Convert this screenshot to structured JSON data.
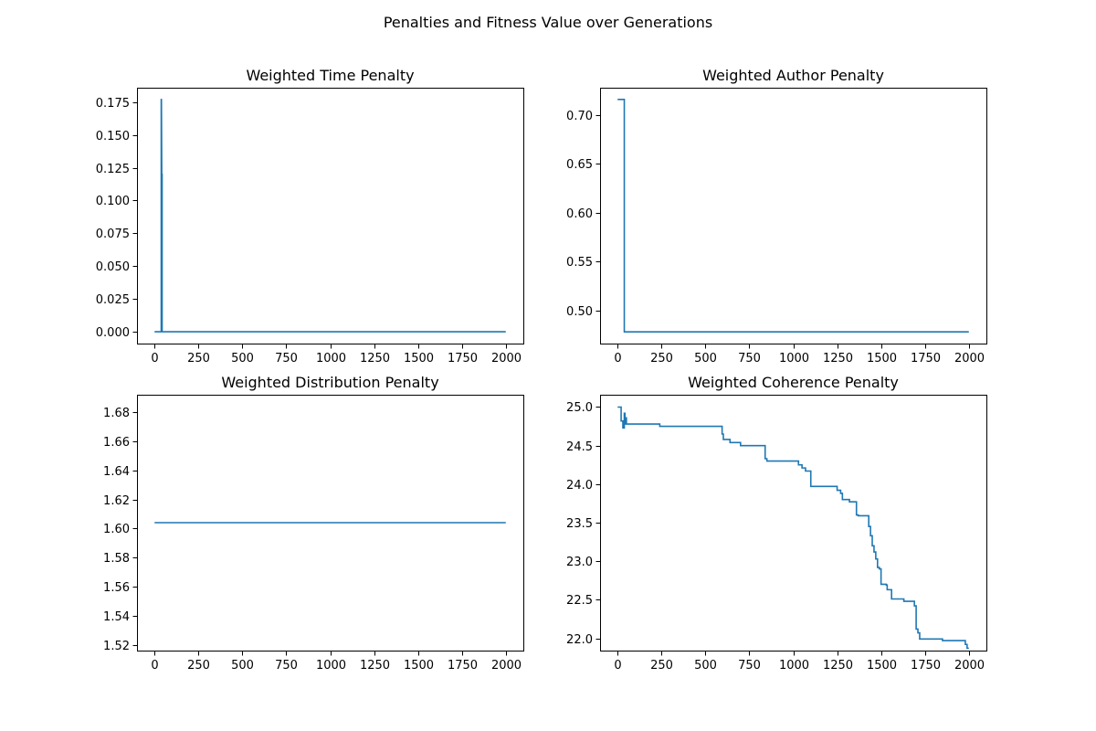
{
  "figure": {
    "suptitle": "Penalties and Fitness Value over Generations"
  },
  "colors": {
    "series": "#1f77b4",
    "axes": "#000000",
    "background": "#ffffff"
  },
  "chart_data": [
    {
      "type": "line",
      "title": "Weighted Time Penalty",
      "xlabel": "",
      "ylabel": "",
      "xlim": [
        -100,
        2100
      ],
      "ylim": [
        -0.009,
        0.186
      ],
      "xticks": [
        0,
        250,
        500,
        750,
        1000,
        1250,
        1500,
        1750,
        2000
      ],
      "xtick_labels": [
        "0",
        "250",
        "500",
        "750",
        "1000",
        "1250",
        "1500",
        "1750",
        "2000"
      ],
      "yticks": [
        0.0,
        0.025,
        0.05,
        0.075,
        0.1,
        0.125,
        0.15,
        0.175
      ],
      "ytick_labels": [
        "0.000",
        "0.025",
        "0.050",
        "0.075",
        "0.100",
        "0.125",
        "0.150",
        "0.175"
      ],
      "grid": false,
      "series": [
        {
          "x": [
            0,
            38,
            38,
            39,
            41,
            43,
            43,
            2000
          ],
          "y": [
            0,
            0,
            0.177,
            0.177,
            0.12,
            0.12,
            0,
            0
          ]
        }
      ]
    },
    {
      "type": "line",
      "title": "Weighted Author Penalty",
      "xlabel": "",
      "ylabel": "",
      "xlim": [
        -100,
        2100
      ],
      "ylim": [
        0.466,
        0.728
      ],
      "xticks": [
        0,
        250,
        500,
        750,
        1000,
        1250,
        1500,
        1750,
        2000
      ],
      "xtick_labels": [
        "0",
        "250",
        "500",
        "750",
        "1000",
        "1250",
        "1500",
        "1750",
        "2000"
      ],
      "yticks": [
        0.5,
        0.55,
        0.6,
        0.65,
        0.7
      ],
      "ytick_labels": [
        "0.50",
        "0.55",
        "0.60",
        "0.65",
        "0.70"
      ],
      "grid": false,
      "series": [
        {
          "x": [
            0,
            38,
            38,
            2000
          ],
          "y": [
            0.716,
            0.716,
            0.478,
            0.478
          ]
        }
      ]
    },
    {
      "type": "line",
      "title": "Weighted Distribution Penalty",
      "xlabel": "",
      "ylabel": "",
      "xlim": [
        -100,
        2100
      ],
      "ylim": [
        1.516,
        1.692
      ],
      "xticks": [
        0,
        250,
        500,
        750,
        1000,
        1250,
        1500,
        1750,
        2000
      ],
      "xtick_labels": [
        "0",
        "250",
        "500",
        "750",
        "1000",
        "1250",
        "1500",
        "1750",
        "2000"
      ],
      "yticks": [
        1.52,
        1.54,
        1.56,
        1.58,
        1.6,
        1.62,
        1.64,
        1.66,
        1.68
      ],
      "ytick_labels": [
        "1.52",
        "1.54",
        "1.56",
        "1.58",
        "1.60",
        "1.62",
        "1.64",
        "1.66",
        "1.68"
      ],
      "grid": false,
      "series": [
        {
          "x": [
            0,
            2000
          ],
          "y": [
            1.604,
            1.604
          ]
        }
      ]
    },
    {
      "type": "line",
      "title": "Weighted Coherence Penalty",
      "xlabel": "",
      "ylabel": "",
      "xlim": [
        -100,
        2100
      ],
      "ylim": [
        21.84,
        25.16
      ],
      "xticks": [
        0,
        250,
        500,
        750,
        1000,
        1250,
        1500,
        1750,
        2000
      ],
      "xtick_labels": [
        "0",
        "250",
        "500",
        "750",
        "1000",
        "1250",
        "1500",
        "1750",
        "2000"
      ],
      "yticks": [
        22.0,
        22.5,
        23.0,
        23.5,
        24.0,
        24.5,
        25.0
      ],
      "ytick_labels": [
        "22.0",
        "22.5",
        "23.0",
        "23.5",
        "24.0",
        "24.5",
        "25.0"
      ],
      "grid": false,
      "series": [
        {
          "x": [
            0,
            20,
            20,
            30,
            30,
            38,
            38,
            42,
            42,
            45,
            45,
            50,
            50,
            240,
            240,
            595,
            595,
            602,
            602,
            640,
            640,
            700,
            700,
            840,
            840,
            850,
            850,
            1030,
            1030,
            1050,
            1050,
            1070,
            1070,
            1100,
            1100,
            1250,
            1250,
            1270,
            1270,
            1280,
            1280,
            1320,
            1320,
            1360,
            1360,
            1370,
            1370,
            1430,
            1430,
            1440,
            1440,
            1450,
            1450,
            1460,
            1460,
            1470,
            1470,
            1480,
            1480,
            1490,
            1490,
            1500,
            1500,
            1530,
            1530,
            1535,
            1535,
            1560,
            1560,
            1630,
            1630,
            1690,
            1690,
            1700,
            1700,
            1710,
            1710,
            1720,
            1720,
            1850,
            1850,
            1980,
            1980,
            1990,
            1990,
            2000
          ],
          "y": [
            25.0,
            25.0,
            24.82,
            24.82,
            24.73,
            24.73,
            24.92,
            24.92,
            24.78,
            24.78,
            24.86,
            24.86,
            24.78,
            24.78,
            24.75,
            24.75,
            24.65,
            24.65,
            24.58,
            24.58,
            24.54,
            24.54,
            24.5,
            24.5,
            24.33,
            24.33,
            24.3,
            24.3,
            24.25,
            24.25,
            24.21,
            24.21,
            24.17,
            24.17,
            23.97,
            23.97,
            23.92,
            23.92,
            23.88,
            23.88,
            23.8,
            23.8,
            23.77,
            23.77,
            23.6,
            23.6,
            23.59,
            23.59,
            23.45,
            23.45,
            23.33,
            23.33,
            23.2,
            23.2,
            23.12,
            23.12,
            23.03,
            23.03,
            22.92,
            22.92,
            22.9,
            22.9,
            22.7,
            22.7,
            22.69,
            22.69,
            22.63,
            22.63,
            22.51,
            22.51,
            22.48,
            22.48,
            22.42,
            22.42,
            22.12,
            22.12,
            22.07,
            22.07,
            21.99,
            21.99,
            21.97,
            21.97,
            21.92,
            21.92,
            21.87,
            21.87
          ]
        }
      ]
    }
  ]
}
